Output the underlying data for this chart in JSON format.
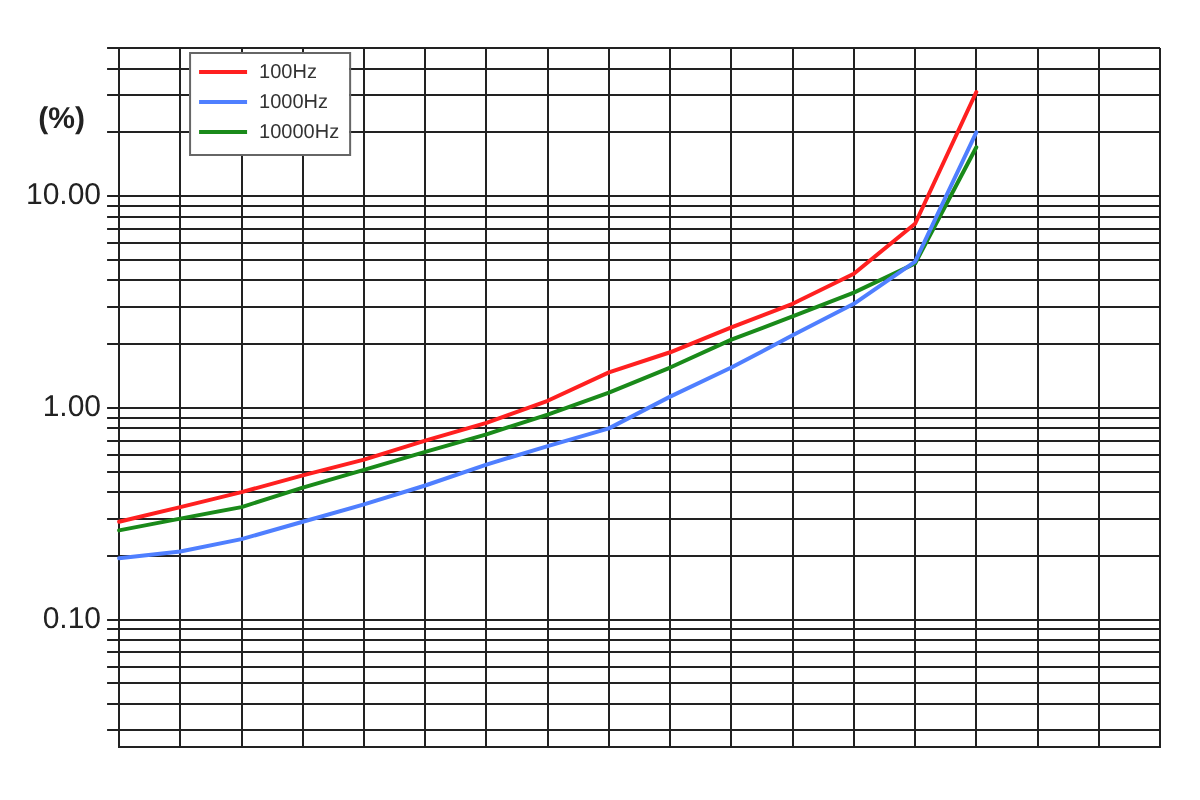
{
  "chart_data": {
    "type": "line",
    "ylabel": "(%)",
    "log": "y",
    "grid": true,
    "legend": "top left",
    "marker": "none",
    "line_style": "solid",
    "categories": [
      null,
      null,
      null,
      null,
      null,
      null,
      null,
      null,
      null,
      null,
      null,
      null,
      null,
      null,
      null,
      null,
      null,
      null
    ],
    "ylim": [
      0.025,
      50
    ],
    "yticks": [
      {
        "value": 0.03,
        "label": null
      },
      {
        "value": 0.04,
        "label": null
      },
      {
        "value": 0.05,
        "label": null
      },
      {
        "value": 0.06,
        "label": null
      },
      {
        "value": 0.07,
        "label": null
      },
      {
        "value": 0.08,
        "label": null
      },
      {
        "value": 0.09,
        "label": null
      },
      {
        "value": 0.1,
        "label": "0.10"
      },
      {
        "value": 0.2,
        "label": null
      },
      {
        "value": 0.3,
        "label": null
      },
      {
        "value": 0.4,
        "label": null
      },
      {
        "value": 0.5,
        "label": null
      },
      {
        "value": 0.6,
        "label": null
      },
      {
        "value": 0.7,
        "label": null
      },
      {
        "value": 0.8,
        "label": null
      },
      {
        "value": 0.9,
        "label": null
      },
      {
        "value": 1,
        "label": "1.00"
      },
      {
        "value": 2,
        "label": null
      },
      {
        "value": 3,
        "label": null
      },
      {
        "value": 4,
        "label": null
      },
      {
        "value": 5,
        "label": null
      },
      {
        "value": 6,
        "label": null
      },
      {
        "value": 7,
        "label": null
      },
      {
        "value": 8,
        "label": null
      },
      {
        "value": 9,
        "label": null
      },
      {
        "value": 10,
        "label": "10.00"
      },
      {
        "value": 20,
        "label": null
      },
      {
        "value": 30,
        "label": null
      },
      {
        "value": 40,
        "label": null
      },
      {
        "value": 50,
        "label": null
      }
    ],
    "series": [
      {
        "name": "100Hz",
        "color": "#ff2020",
        "values": [
          0.29,
          0.34,
          0.4,
          0.48,
          0.57,
          0.7,
          0.85,
          1.08,
          1.47,
          1.83,
          2.4,
          3.1,
          4.3,
          7.4,
          31,
          null,
          null,
          null
        ]
      },
      {
        "name": "1000Hz",
        "color": "#4f7fff",
        "values": [
          0.195,
          0.21,
          0.24,
          0.29,
          0.35,
          0.43,
          0.54,
          0.66,
          0.8,
          1.13,
          1.55,
          2.2,
          3.1,
          4.9,
          20,
          null,
          null,
          null
        ]
      },
      {
        "name": "10000Hz",
        "color": "#1a8a1a",
        "values": [
          0.264,
          0.3,
          0.34,
          0.42,
          0.51,
          0.62,
          0.75,
          0.93,
          1.18,
          1.55,
          2.1,
          2.7,
          3.5,
          4.8,
          17,
          null,
          null,
          null
        ]
      }
    ]
  }
}
